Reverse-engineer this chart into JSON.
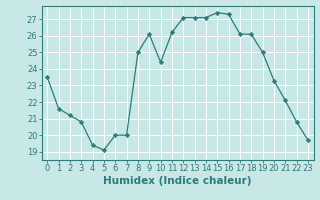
{
  "x": [
    0,
    1,
    2,
    3,
    4,
    5,
    6,
    7,
    8,
    9,
    10,
    11,
    12,
    13,
    14,
    15,
    16,
    17,
    18,
    19,
    20,
    21,
    22,
    23
  ],
  "y": [
    23.5,
    21.6,
    21.2,
    20.8,
    19.4,
    19.1,
    20.0,
    20.0,
    25.0,
    26.1,
    24.4,
    26.2,
    27.1,
    27.1,
    27.1,
    27.4,
    27.3,
    26.1,
    26.1,
    25.0,
    23.3,
    22.1,
    20.8,
    19.7
  ],
  "line_color": "#2d7b7b",
  "marker": "D",
  "marker_size": 2.2,
  "bg_color": "#c8e8e8",
  "grid_color": "#ffffff",
  "xlabel": "Humidex (Indice chaleur)",
  "ylim": [
    18.5,
    27.8
  ],
  "xlim": [
    -0.5,
    23.5
  ],
  "yticks": [
    19,
    20,
    21,
    22,
    23,
    24,
    25,
    26,
    27
  ],
  "xticks": [
    0,
    1,
    2,
    3,
    4,
    5,
    6,
    7,
    8,
    9,
    10,
    11,
    12,
    13,
    14,
    15,
    16,
    17,
    18,
    19,
    20,
    21,
    22,
    23
  ],
  "tick_label_fontsize": 6.0,
  "xlabel_fontsize": 7.5
}
